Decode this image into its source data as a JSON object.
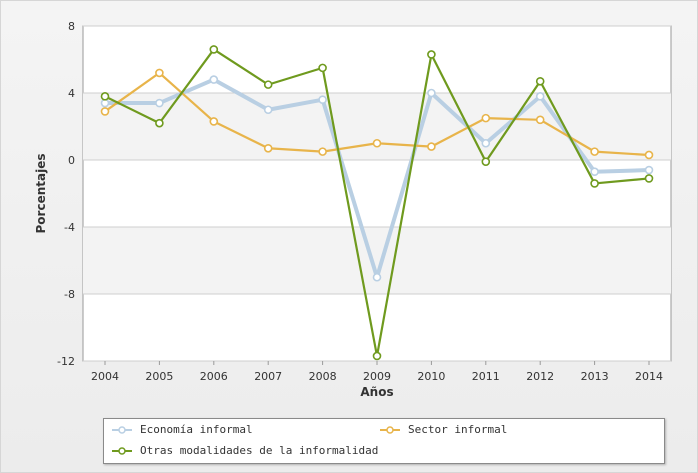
{
  "chart_data": {
    "type": "line",
    "title": "",
    "xlabel": "Años",
    "ylabel": "Porcentajes",
    "x": [
      "2004",
      "2005",
      "2006",
      "2007",
      "2008",
      "2009",
      "2010",
      "2011",
      "2012",
      "2013",
      "2014"
    ],
    "ylim": [
      -12,
      8
    ],
    "yticks": [
      "8",
      "4",
      "0",
      "-4",
      "-8",
      "-12"
    ],
    "grid": true,
    "legend_position": "bottom",
    "series": [
      {
        "name": "Economía informal",
        "color": "#b9cfe3",
        "values": [
          3.4,
          3.4,
          4.8,
          3.0,
          3.6,
          -7.0,
          4.0,
          1.0,
          3.8,
          -0.7,
          -0.6
        ]
      },
      {
        "name": "Sector informal",
        "color": "#e8b44a",
        "values": [
          2.9,
          5.2,
          2.3,
          0.7,
          0.5,
          1.0,
          0.8,
          2.5,
          2.4,
          0.5,
          0.3
        ]
      },
      {
        "name": "Otras modalidades de la informalidad",
        "color": "#6f9a1e",
        "values": [
          3.8,
          2.2,
          6.6,
          4.5,
          5.5,
          -11.7,
          6.3,
          -0.1,
          4.7,
          -1.4,
          -1.1
        ]
      }
    ]
  }
}
